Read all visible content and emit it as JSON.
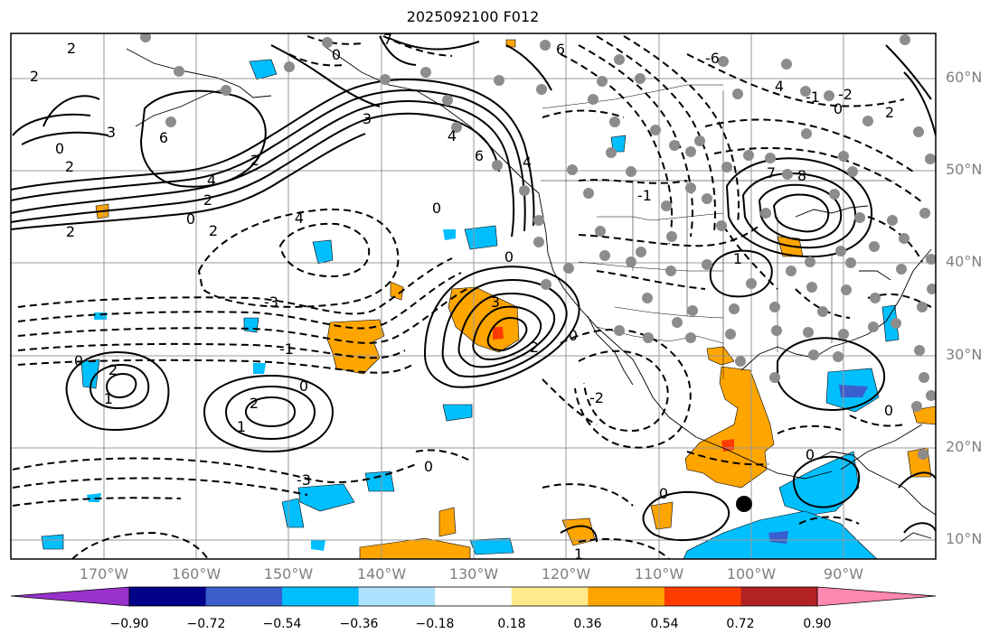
{
  "title": "2025092100 F012",
  "lat_labels": [
    "60°N",
    "50°N",
    "40°N",
    "30°N",
    "20°N",
    "10°N"
  ],
  "lon_labels": [
    "170°W",
    "160°W",
    "150°W",
    "140°W",
    "130°W",
    "120°W",
    "110°W",
    "100°W",
    "90°W"
  ],
  "colorbar": {
    "ticks": [
      "−0.90",
      "−0.72",
      "−0.54",
      "−0.36",
      "−0.18",
      "0.18",
      "0.36",
      "0.54",
      "0.72",
      "0.90"
    ],
    "colors": [
      "#9932cc",
      "#00008b",
      "#3a5fcd",
      "#00bfff",
      "#aee3ff",
      "#ffffff",
      "#ffeb8c",
      "#ffa500",
      "#ff3c00",
      "#b22222",
      "#ff88b0"
    ]
  },
  "contour_labels": [
    "2",
    "2",
    "0",
    "3",
    "2",
    "6",
    "2",
    "4",
    "2",
    "0",
    "2",
    "2",
    "3",
    "0",
    "6",
    "7",
    "4",
    "6",
    "4",
    "4",
    "3",
    "-3",
    "-1",
    "0",
    "2",
    "1",
    "2",
    "1",
    "0",
    "0",
    "-3",
    "2",
    "0",
    "-2",
    "0",
    "1",
    "-6",
    "4",
    "2",
    "-1",
    "7",
    "8",
    "1",
    "-1",
    "-2",
    "0",
    "0",
    "0",
    "0",
    "0"
  ],
  "marker_colors": {
    "station": "#8c8c8c",
    "storm_center": "#000000"
  }
}
